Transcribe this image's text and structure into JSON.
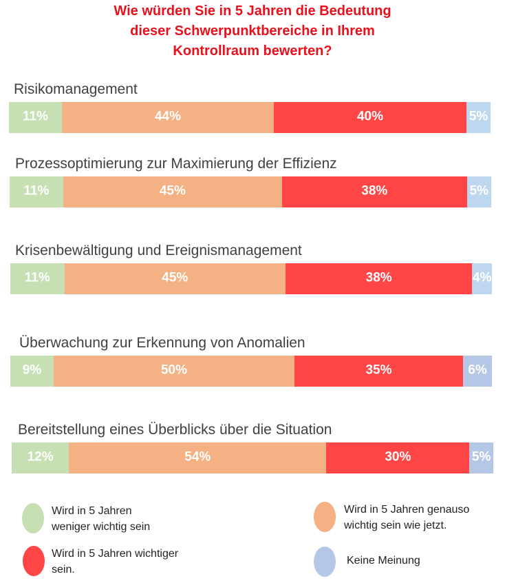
{
  "chart_data": {
    "type": "bar",
    "orientation": "horizontal",
    "stacked": true,
    "normalized": "percent",
    "title_lines": [
      "Wie würden Sie in 5 Jahren die Bedeutung",
      "dieser Schwerpunktbereiche in Ihrem",
      "Kontrollraum bewerten?"
    ],
    "title_color": "#e8101c",
    "categories": [
      "Risikomanagement",
      "Prozessoptimierung zur Maximierung der Effizienz",
      "Krisenbewältigung und Ereignismanagement",
      "Überwachung zur Erkennung von Anomalien",
      "Bereitstellung eines Überblicks über die Situation"
    ],
    "series": [
      {
        "key": "less",
        "color": "#c6e0b4",
        "values": [
          11,
          11,
          11,
          9,
          12
        ],
        "labels": [
          "11%",
          "11%",
          "11%",
          "9%",
          "12%"
        ]
      },
      {
        "key": "same",
        "color": "#f4b183",
        "values": [
          44,
          45,
          45,
          50,
          54
        ],
        "labels": [
          "44%",
          "45%",
          "45%",
          "50%",
          "54%"
        ]
      },
      {
        "key": "more",
        "color": "#ff4545",
        "values": [
          40,
          38,
          38,
          35,
          30
        ],
        "labels": [
          "40%",
          "38%",
          "38%",
          "35%",
          "30%"
        ]
      },
      {
        "key": "none",
        "color": "#bdd7ee",
        "values": [
          5,
          5,
          4,
          6,
          5
        ],
        "labels": [
          "5%",
          "5%",
          "4%",
          "6%",
          "5%"
        ]
      }
    ],
    "none_color_variants": [
      "#bdd7ee",
      "#bdd7ee",
      "#bdd7ee",
      "#b4c7e7",
      "#b4c7e7"
    ],
    "legend": {
      "placement": "bottom",
      "items": [
        {
          "color": "#c6e0b4",
          "lines": [
            "Wird in 5 Jahren",
            "weniger wichtig sein"
          ]
        },
        {
          "color": "#f4b183",
          "lines": [
            "Wird in 5 Jahren genauso",
            "wichtig sein wie jetzt."
          ]
        },
        {
          "color": "#ff4545",
          "lines": [
            "Wird in 5 Jahren wichtiger",
            "sein."
          ]
        },
        {
          "color": "#b4c7e7",
          "lines": [
            "Keine Meinung"
          ]
        }
      ]
    }
  }
}
